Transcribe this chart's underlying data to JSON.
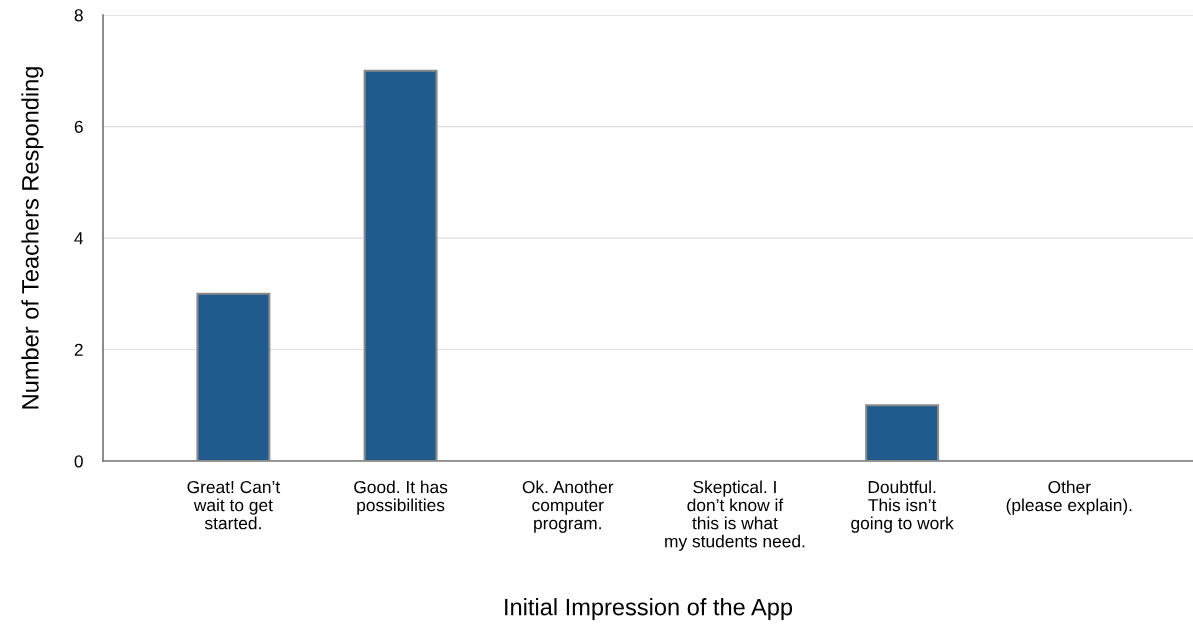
{
  "chart_data": {
    "type": "bar",
    "xlabel": "Initial Impression of the App",
    "ylabel": "Number of Teachers Responding",
    "categories": [
      "Great! Can’t\nwait to get\nstarted.",
      "Good. It has\npossibilities",
      "Ok. Another\ncomputer\nprogram.",
      "Skeptical. I\ndon’t know if\nthis is what\nmy students need.",
      "Doubtful.\nThis isn’t\ngoing to work",
      "Other\n(please explain)."
    ],
    "values": [
      3,
      7,
      0,
      0,
      1,
      0
    ],
    "color": "#1f5b8c",
    "ylim": [
      0,
      8
    ],
    "yticks": [
      0,
      2,
      4,
      6,
      8
    ],
    "grid": "y",
    "legend": false
  }
}
